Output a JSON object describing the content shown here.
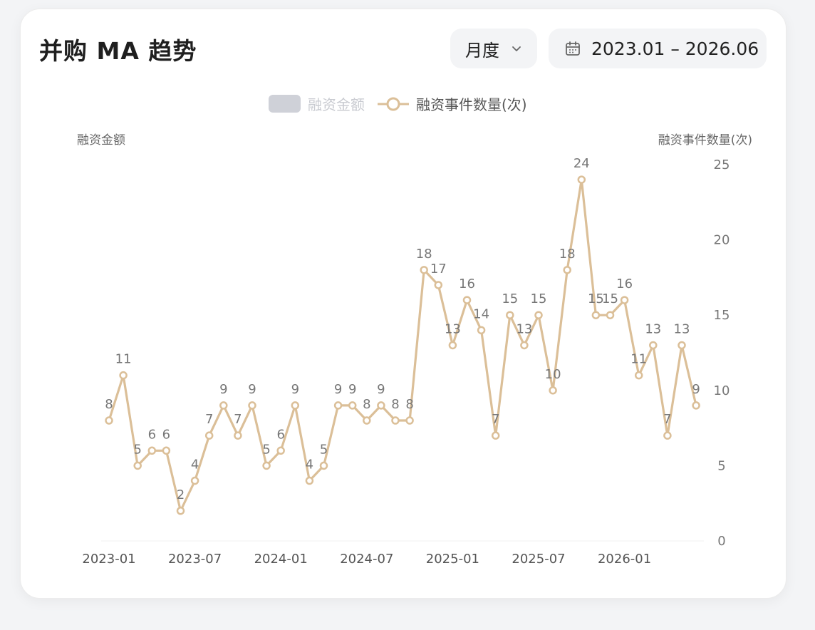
{
  "header": {
    "title": "并购 MA 趋势",
    "period_label": "月度",
    "date_range": "2023.01 – 2026.06"
  },
  "colors": {
    "line": "#dbbf98",
    "bar_legend": "#cfd1d8"
  },
  "icons": {
    "period_dropdown": "chevron-down-icon",
    "date_picker": "calendar-icon",
    "legend_line_marker": "circle-marker-icon"
  },
  "chart_data": {
    "type": "line",
    "title": "",
    "left_axis_label": "融资金额",
    "right_axis_label": "融资事件数量(次)",
    "legend": {
      "placement": "top-center",
      "items": [
        {
          "name": "融资金额",
          "kind": "bar",
          "active": false
        },
        {
          "name": "融资事件数量(次)",
          "kind": "line",
          "active": true
        }
      ]
    },
    "x_tick_labels": [
      "2023-01",
      "2023-07",
      "2024-01",
      "2024-07",
      "2025-01",
      "2025-07",
      "2026-01"
    ],
    "x_tick_months": [
      "2023-01",
      "2023-07",
      "2024-01",
      "2024-07",
      "2025-01",
      "2025-07",
      "2026-01"
    ],
    "y_right": {
      "min": 0,
      "max": 25,
      "ticks": [
        0,
        5,
        10,
        15,
        20,
        25
      ]
    },
    "x": [
      "2023-01",
      "2023-02",
      "2023-03",
      "2023-04",
      "2023-05",
      "2023-06",
      "2023-07",
      "2023-08",
      "2023-09",
      "2023-10",
      "2023-11",
      "2023-12",
      "2024-01",
      "2024-02",
      "2024-03",
      "2024-04",
      "2024-05",
      "2024-06",
      "2024-07",
      "2024-08",
      "2024-09",
      "2024-10",
      "2024-11",
      "2024-12",
      "2025-01",
      "2025-02",
      "2025-03",
      "2025-04",
      "2025-05",
      "2025-06",
      "2025-07",
      "2025-08",
      "2025-09",
      "2025-10",
      "2025-11",
      "2025-12",
      "2026-01",
      "2026-02",
      "2026-03",
      "2026-04",
      "2026-05",
      "2026-06"
    ],
    "series": [
      {
        "name": "融资事件数量(次)",
        "values": [
          8,
          11,
          5,
          6,
          6,
          2,
          4,
          7,
          9,
          7,
          9,
          5,
          6,
          9,
          4,
          5,
          9,
          9,
          8,
          9,
          8,
          8,
          18,
          17,
          13,
          16,
          14,
          7,
          15,
          13,
          15,
          10,
          18,
          24,
          15,
          15,
          16,
          11,
          13,
          7,
          13,
          9
        ]
      }
    ],
    "grid": false
  }
}
